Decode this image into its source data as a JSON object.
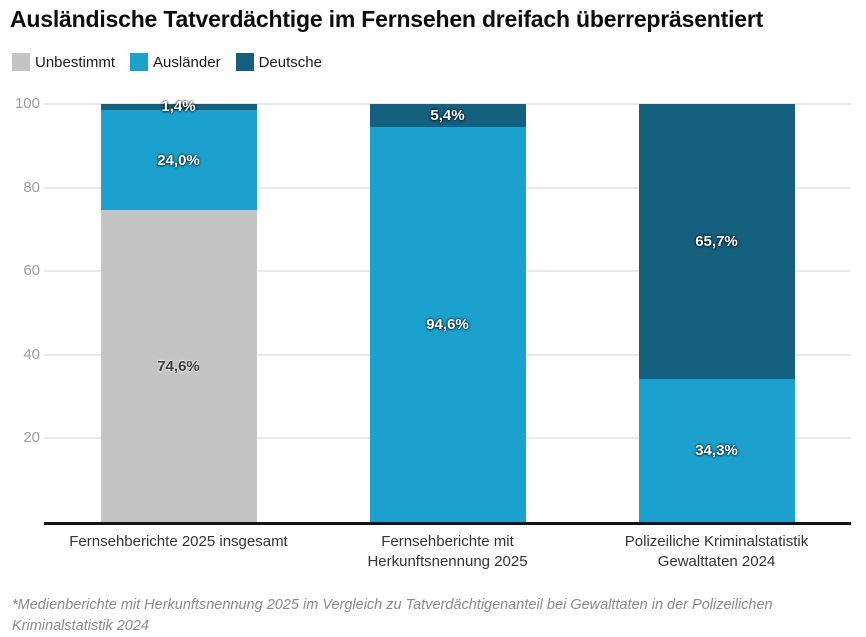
{
  "title": "Ausländische Tatverdächtige im Fernsehen dreifach überrepräsentiert",
  "footnote": "*Medienberichte mit Herkunftsnennung 2025 im Vergleich zu Tatverdächtigenanteil bei Gewalttaten in der Polizeilichen Kriminalstatistik 2024",
  "colors": {
    "unbestimmt": "#c4c4c4",
    "auslaender": "#1ba1ce",
    "deutsche": "#15607e",
    "gridline": "#e9e9e9",
    "axis_line": "#141414",
    "tick_label": "#9e9e9e"
  },
  "legend": [
    {
      "label": "Unbestimmt",
      "color": "#c4c4c4"
    },
    {
      "label": "Ausländer",
      "color": "#1ba1ce"
    },
    {
      "label": "Deutsche",
      "color": "#15607e"
    }
  ],
  "chart_data": {
    "type": "bar",
    "stacked": true,
    "title": "Ausländische Tatverdächtige im Fernsehen dreifach überrepräsentiert",
    "categories": [
      "Fernsehberichte 2025 insgesamt",
      "Fernsehberichte mit Herkunftsnennung 2025",
      "Polizeiliche Kriminalstatistik Gewalttaten 2024"
    ],
    "category_lines": [
      [
        "Fernsehberichte 2025 insgesamt"
      ],
      [
        "Fernsehberichte mit",
        "Herkunftsnennung 2025"
      ],
      [
        "Polizeiliche Kriminalstatistik",
        "Gewalttaten 2024"
      ]
    ],
    "series": [
      {
        "name": "Unbestimmt",
        "color": "#c4c4c4",
        "values": [
          74.6,
          0,
          0
        ],
        "labels": [
          "74,6%",
          "",
          ""
        ]
      },
      {
        "name": "Ausländer",
        "color": "#1ba1ce",
        "values": [
          24.0,
          94.6,
          34.3
        ],
        "labels": [
          "24,0%",
          "94,6%",
          "34,3%"
        ]
      },
      {
        "name": "Deutsche",
        "color": "#15607e",
        "values": [
          1.4,
          5.4,
          65.7
        ],
        "labels": [
          "1,4%",
          "5,4%",
          "65,7%"
        ]
      }
    ],
    "xlabel": "",
    "ylabel": "",
    "ylim": [
      0,
      100
    ],
    "yticks": [
      20,
      40,
      60,
      80,
      100
    ],
    "grid": true,
    "legend_position": "top"
  }
}
